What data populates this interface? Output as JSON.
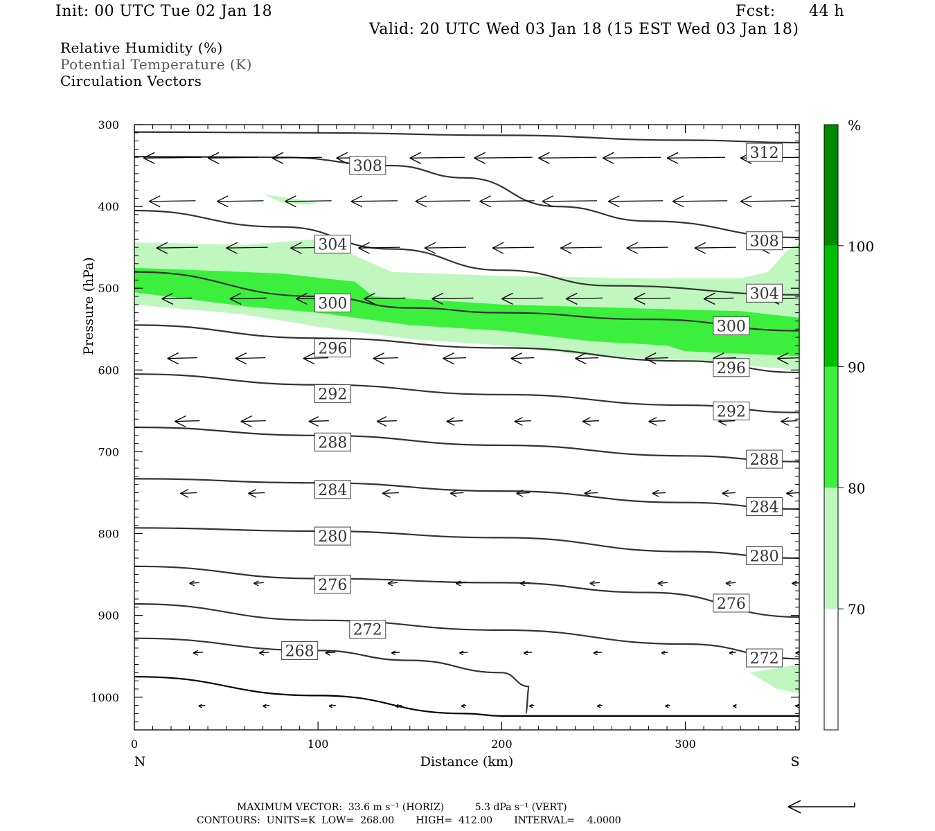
{
  "header": {
    "init": "Init: 00 UTC Tue 02 Jan 18",
    "fcst_label": "Fcst:",
    "fcst_value": "44 h",
    "valid": "Valid: 20 UTC Wed 03 Jan 18 (15 EST Wed 03 Jan 18)"
  },
  "fields": {
    "rh": "Relative Humidity (%)",
    "theta": "Potential Temperature (K)",
    "vectors": "Circulation Vectors"
  },
  "footer": {
    "max_vector": "MAXIMUM VECTOR:  33.6 m s⁻¹ (HORIZ)          5.3 dPa s⁻¹ (VERT)",
    "contours": "CONTOURS:  UNITS=K  LOW=  268.00       HIGH=  412.00       INTERVAL=    4.0000"
  },
  "colors": {
    "rh_70_80": "#bff7bf",
    "rh_80_90": "#3cef3c",
    "rh_90_100": "#00bf00",
    "rh_100_plus": "#008a00",
    "contour": "#333333"
  },
  "chart_data": {
    "type": "cross-section",
    "xlabel": "Distance (km)",
    "ylabel": "Pressure (hPa)",
    "x_ticks": [
      0,
      100,
      200,
      300
    ],
    "y_ticks": [
      300,
      400,
      500,
      600,
      700,
      800,
      900,
      1000
    ],
    "xlim": [
      0,
      362
    ],
    "ylim": [
      305,
      1040
    ],
    "left_end_label": "N",
    "right_end_label": "S",
    "colorbar": {
      "unit": "%",
      "levels": [
        70,
        80,
        90,
        100
      ],
      "colors": [
        "#bff7bf",
        "#3cef3c",
        "#00bf00",
        "#008a00"
      ]
    },
    "theta_contours": [
      {
        "value": 312,
        "label": "312",
        "points": [
          [
            0,
            309
          ],
          [
            100,
            310
          ],
          [
            200,
            313
          ],
          [
            300,
            319
          ],
          [
            362,
            322
          ]
        ],
        "label_at": [
          343,
          334
        ]
      },
      {
        "value": 308,
        "label": "308",
        "points": [
          [
            0,
            339
          ],
          [
            80,
            340
          ],
          [
            140,
            350
          ],
          [
            180,
            365
          ],
          [
            230,
            400
          ],
          [
            280,
            418
          ],
          [
            362,
            438
          ]
        ],
        "label_at": [
          127,
          350
        ]
      },
      {
        "value": 308,
        "label": "308",
        "points": [],
        "label_at": [
          343,
          442
        ]
      },
      {
        "value": 304,
        "label": "304",
        "points": [
          [
            0,
            405
          ],
          [
            80,
            425
          ],
          [
            140,
            452
          ],
          [
            200,
            478
          ],
          [
            260,
            497
          ],
          [
            362,
            508
          ]
        ],
        "label_at": [
          108,
          446
        ]
      },
      {
        "value": 304,
        "label": "304",
        "points": [],
        "label_at": [
          343,
          506
        ]
      },
      {
        "value": 300,
        "label": "300",
        "points": [
          [
            0,
            480
          ],
          [
            100,
            510
          ],
          [
            150,
            524
          ],
          [
            200,
            530
          ],
          [
            280,
            538
          ],
          [
            362,
            552
          ]
        ],
        "label_at": [
          108,
          518
        ]
      },
      {
        "value": 300,
        "label": "300",
        "points": [],
        "label_at": [
          325,
          546
        ]
      },
      {
        "value": 296,
        "label": "296",
        "points": [
          [
            0,
            545
          ],
          [
            100,
            561
          ],
          [
            200,
            573
          ],
          [
            300,
            589
          ],
          [
            362,
            603
          ]
        ],
        "label_at": [
          108,
          573
        ]
      },
      {
        "value": 296,
        "label": "296",
        "points": [],
        "label_at": [
          325,
          597
        ]
      },
      {
        "value": 292,
        "label": "292",
        "points": [
          [
            0,
            605
          ],
          [
            100,
            618
          ],
          [
            200,
            630
          ],
          [
            300,
            643
          ],
          [
            362,
            652
          ]
        ],
        "label_at": [
          108,
          629
        ]
      },
      {
        "value": 292,
        "label": "292",
        "points": [],
        "label_at": [
          325,
          650
        ]
      },
      {
        "value": 288,
        "label": "288",
        "points": [
          [
            0,
            670
          ],
          [
            100,
            680
          ],
          [
            200,
            692
          ],
          [
            300,
            705
          ],
          [
            362,
            712
          ]
        ],
        "label_at": [
          108,
          688
        ]
      },
      {
        "value": 288,
        "label": "288",
        "points": [],
        "label_at": [
          343,
          709
        ]
      },
      {
        "value": 284,
        "label": "284",
        "points": [
          [
            0,
            733
          ],
          [
            100,
            738
          ],
          [
            200,
            748
          ],
          [
            300,
            762
          ],
          [
            362,
            770
          ]
        ],
        "label_at": [
          108,
          746
        ]
      },
      {
        "value": 284,
        "label": "284",
        "points": [],
        "label_at": [
          343,
          767
        ]
      },
      {
        "value": 280,
        "label": "280",
        "points": [
          [
            0,
            793
          ],
          [
            100,
            797
          ],
          [
            200,
            805
          ],
          [
            300,
            822
          ],
          [
            362,
            830
          ]
        ],
        "label_at": [
          108,
          803
        ]
      },
      {
        "value": 280,
        "label": "280",
        "points": [],
        "label_at": [
          343,
          827
        ]
      },
      {
        "value": 276,
        "label": "276",
        "points": [
          [
            0,
            840
          ],
          [
            100,
            855
          ],
          [
            200,
            860
          ],
          [
            280,
            872
          ],
          [
            362,
            902
          ]
        ],
        "label_at": [
          108,
          862
        ]
      },
      {
        "value": 276,
        "label": "276",
        "points": [],
        "label_at": [
          325,
          885
        ]
      },
      {
        "value": 272,
        "label": "272",
        "points": [
          [
            0,
            886
          ],
          [
            100,
            906
          ],
          [
            200,
            918
          ],
          [
            300,
            935
          ],
          [
            362,
            953
          ]
        ],
        "label_at": [
          127,
          917
        ]
      },
      {
        "value": 272,
        "label": "272",
        "points": [],
        "label_at": [
          343,
          952
        ]
      },
      {
        "value": 268,
        "label": "268",
        "points": [
          [
            0,
            928
          ],
          [
            100,
            943
          ],
          [
            150,
            955
          ],
          [
            200,
            970
          ],
          [
            215,
            987
          ],
          [
            213,
            1020
          ]
        ],
        "label_at": [
          90,
          943
        ]
      }
    ],
    "surface_line": [
      [
        0,
        975
      ],
      [
        100,
        998
      ],
      [
        180,
        1020
      ],
      [
        200,
        1023
      ],
      [
        362,
        1023
      ]
    ],
    "rh_shading": [
      {
        "level": "70-80",
        "polygon": [
          [
            0,
            444
          ],
          [
            60,
            447
          ],
          [
            100,
            440
          ],
          [
            110,
            450
          ],
          [
            140,
            480
          ],
          [
            200,
            485
          ],
          [
            280,
            488
          ],
          [
            330,
            488
          ],
          [
            345,
            480
          ],
          [
            355,
            455
          ],
          [
            362,
            445
          ],
          [
            362,
            600
          ],
          [
            300,
            588
          ],
          [
            250,
            583
          ],
          [
            200,
            570
          ],
          [
            150,
            562
          ],
          [
            100,
            547
          ],
          [
            60,
            532
          ],
          [
            0,
            520
          ]
        ]
      },
      {
        "level": "70-80",
        "polygon": [
          [
            70,
            385
          ],
          [
            100,
            395
          ],
          [
            95,
            398
          ],
          [
            80,
            395
          ]
        ]
      },
      {
        "level": "70-80",
        "polygon": [
          [
            335,
            970
          ],
          [
            362,
            960
          ],
          [
            362,
            995
          ],
          [
            350,
            990
          ]
        ]
      },
      {
        "level": "80-90",
        "polygon": [
          [
            0,
            475
          ],
          [
            80,
            482
          ],
          [
            120,
            492
          ],
          [
            130,
            510
          ],
          [
            200,
            520
          ],
          [
            280,
            525
          ],
          [
            330,
            528
          ],
          [
            362,
            536
          ],
          [
            362,
            583
          ],
          [
            300,
            577
          ],
          [
            290,
            570
          ],
          [
            250,
            565
          ],
          [
            200,
            552
          ],
          [
            150,
            545
          ],
          [
            100,
            530
          ],
          [
            60,
            522
          ],
          [
            0,
            505
          ]
        ]
      },
      {
        "level": "90-100",
        "polygon": []
      }
    ],
    "vector_rows": [
      {
        "p": 340,
        "x": [
          5,
          40,
          75,
          110,
          150,
          185,
          220,
          255,
          290,
          330
        ],
        "len": [
          35,
          30,
          30,
          30,
          33,
          35,
          35,
          35,
          35,
          35
        ]
      },
      {
        "p": 393,
        "x": [
          8,
          45,
          82,
          118,
          153,
          188,
          222,
          258,
          293,
          330
        ],
        "len": [
          28,
          28,
          28,
          28,
          33,
          33,
          33,
          33,
          33,
          33
        ]
      },
      {
        "p": 450,
        "x": [
          12,
          50,
          85,
          122,
          158,
          195,
          232,
          268,
          305,
          340
        ],
        "len": [
          25,
          25,
          25,
          25,
          25,
          25,
          25,
          25,
          25,
          25
        ]
      },
      {
        "p": 512,
        "x": [
          15,
          52,
          88,
          125,
          162,
          200,
          235,
          272,
          310,
          345
        ],
        "len": [
          18,
          22,
          25,
          25,
          25,
          25,
          22,
          22,
          18,
          18
        ]
      },
      {
        "p": 585,
        "x": [
          18,
          55,
          92,
          130,
          168,
          205,
          240,
          278,
          315,
          350
        ],
        "len": [
          18,
          18,
          15,
          15,
          14,
          14,
          14,
          14,
          14,
          14
        ]
      },
      {
        "p": 662,
        "x": [
          22,
          58,
          95,
          132,
          170,
          207,
          244,
          280,
          318,
          352
        ],
        "len": [
          15,
          15,
          12,
          12,
          10,
          10,
          10,
          10,
          10,
          10
        ]
      },
      {
        "p": 750,
        "x": [
          25,
          62,
          98,
          135,
          172,
          208,
          245,
          282,
          320,
          355
        ],
        "len": [
          10,
          10,
          10,
          10,
          8,
          8,
          8,
          8,
          8,
          8
        ]
      },
      {
        "p": 860,
        "x": [
          30,
          65,
          100,
          138,
          175,
          210,
          248,
          285,
          322,
          358
        ],
        "len": [
          6,
          6,
          6,
          6,
          6,
          6,
          6,
          6,
          6,
          6
        ]
      },
      {
        "p": 945,
        "x": [
          32,
          68,
          104,
          140,
          177,
          212,
          250,
          287,
          324,
          360
        ],
        "len": [
          6,
          6,
          6,
          5,
          5,
          5,
          5,
          4,
          4,
          4
        ]
      },
      {
        "p": 1010,
        "x": [
          35,
          70,
          106,
          142,
          178,
          215,
          252,
          289,
          326,
          360
        ],
        "len": [
          4,
          4,
          4,
          4,
          3,
          3,
          3,
          3,
          2,
          2
        ]
      }
    ]
  }
}
